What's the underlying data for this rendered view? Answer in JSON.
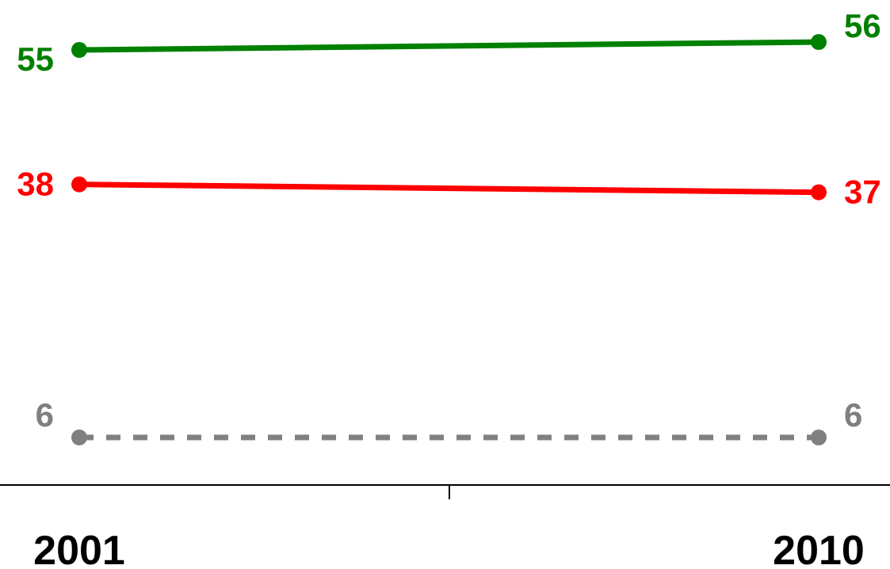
{
  "chart_data": {
    "type": "line",
    "title": "",
    "xlabel": "",
    "ylabel": "",
    "x": [
      "2001",
      "2010"
    ],
    "ylim": [
      0,
      60
    ],
    "grid": false,
    "legend": "none",
    "series": [
      {
        "key": "green",
        "color": "#008000",
        "dashed": false,
        "values": [
          55,
          56
        ],
        "labels": [
          "55",
          "56"
        ]
      },
      {
        "key": "red",
        "color": "#ff0000",
        "dashed": false,
        "values": [
          38,
          37
        ],
        "labels": [
          "38",
          "37"
        ]
      },
      {
        "key": "gray",
        "color": "#808080",
        "dashed": true,
        "values": [
          6,
          6
        ],
        "labels": [
          "6",
          "6"
        ]
      }
    ],
    "x_tick_labels": [
      "2001",
      "2010"
    ]
  }
}
